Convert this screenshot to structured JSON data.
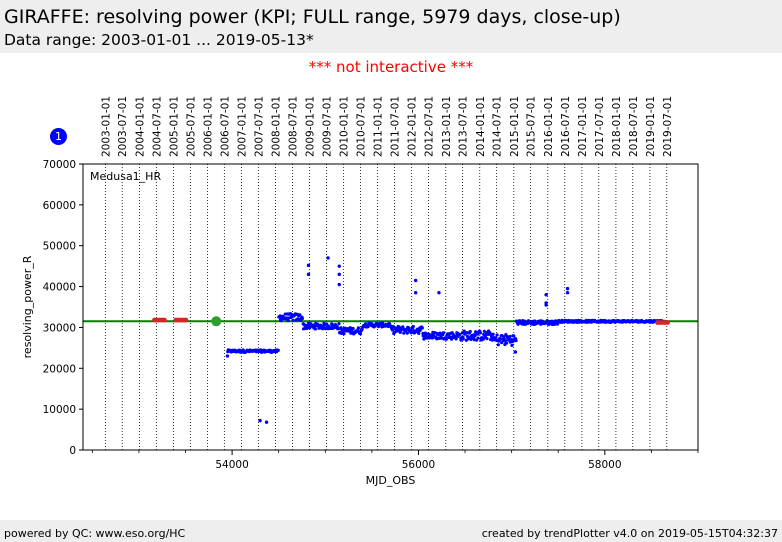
{
  "header": {
    "title": "GIRAFFE: resolving power (KPI; FULL range, 5979 days, close-up)",
    "subtitle": "Data range: 2003-01-01 ... 2019-05-13*"
  },
  "notice": "*** not interactive ***",
  "badge": "1",
  "footer": {
    "left": "powered by QC: www.eso.org/HC",
    "right": "created by trendPlotter v4.0 on 2019-05-15T04:32:37"
  },
  "colors": {
    "data_points": "#0000ff",
    "reference_line": "#008000",
    "marker_red": "#d62728",
    "marker_green": "#2ca02c"
  },
  "chart_data": {
    "type": "scatter",
    "title": "",
    "xlabel": "MJD_OBS",
    "ylabel": "resolving_power_R",
    "annotation": "Medusa1_HR",
    "xlim": [
      52400,
      59000
    ],
    "ylim": [
      0,
      70000
    ],
    "x_ticks": [
      54000,
      56000,
      58000
    ],
    "y_ticks": [
      0,
      10000,
      20000,
      30000,
      40000,
      50000,
      60000,
      70000
    ],
    "date_axis": {
      "labels": [
        "2003-01-01",
        "2003-07-01",
        "2004-01-01",
        "2004-07-01",
        "2005-01-01",
        "2005-07-01",
        "2006-01-01",
        "2006-07-01",
        "2007-01-01",
        "2007-07-01",
        "2008-01-01",
        "2008-07-01",
        "2009-01-01",
        "2009-07-01",
        "2010-01-01",
        "2010-07-01",
        "2011-01-01",
        "2011-07-01",
        "2012-01-01",
        "2012-07-01",
        "2013-01-01",
        "2013-07-01",
        "2014-01-01",
        "2014-07-01",
        "2015-01-01",
        "2015-07-01",
        "2016-01-01",
        "2016-07-01",
        "2017-01-01",
        "2017-07-01",
        "2018-01-01",
        "2018-07-01",
        "2019-01-01",
        "2019-07-01"
      ],
      "mjd": [
        52640,
        52821,
        53005,
        53187,
        53371,
        53552,
        53736,
        53917,
        54101,
        54282,
        54466,
        54648,
        54832,
        55013,
        55197,
        55378,
        55562,
        55743,
        55927,
        56109,
        56293,
        56474,
        56658,
        56839,
        57023,
        57204,
        57388,
        57570,
        57754,
        57935,
        58119,
        58300,
        58484,
        58665
      ]
    },
    "reference_line": {
      "y": 31500
    },
    "series": [
      {
        "segments": [
          {
            "x0": 53950,
            "x1": 54500,
            "base": 24200,
            "spread": 300
          },
          {
            "x0": 54500,
            "x1": 54760,
            "base": 32500,
            "spread": 900
          },
          {
            "x0": 54760,
            "x1": 55150,
            "base": 30300,
            "spread": 700
          },
          {
            "x0": 55150,
            "x1": 55400,
            "base": 29200,
            "spread": 800
          },
          {
            "x0": 55400,
            "x1": 55700,
            "base": 30600,
            "spread": 500
          },
          {
            "x0": 55700,
            "x1": 56050,
            "base": 29400,
            "spread": 900
          },
          {
            "x0": 56050,
            "x1": 56450,
            "base": 28000,
            "spread": 900
          },
          {
            "x0": 56450,
            "x1": 56800,
            "base": 28000,
            "spread": 1200
          },
          {
            "x0": 56800,
            "x1": 57050,
            "base": 27000,
            "spread": 1400
          },
          {
            "x0": 57050,
            "x1": 57500,
            "base": 31200,
            "spread": 500
          },
          {
            "x0": 57500,
            "x1": 58650,
            "base": 31500,
            "spread": 250
          }
        ],
        "outliers": [
          {
            "x": 54300,
            "y": 7200
          },
          {
            "x": 54370,
            "y": 6800
          },
          {
            "x": 54820,
            "y": 45200
          },
          {
            "x": 54820,
            "y": 43000
          },
          {
            "x": 55030,
            "y": 47000
          },
          {
            "x": 55150,
            "y": 45000
          },
          {
            "x": 55150,
            "y": 43000
          },
          {
            "x": 55150,
            "y": 40500
          },
          {
            "x": 55970,
            "y": 41500
          },
          {
            "x": 55970,
            "y": 38500
          },
          {
            "x": 56220,
            "y": 38500
          },
          {
            "x": 57370,
            "y": 38000
          },
          {
            "x": 57370,
            "y": 36000
          },
          {
            "x": 57370,
            "y": 35500
          },
          {
            "x": 57600,
            "y": 39500
          },
          {
            "x": 57600,
            "y": 38500
          },
          {
            "x": 57040,
            "y": 24000
          },
          {
            "x": 53950,
            "y": 23000
          }
        ]
      }
    ],
    "markers": [
      {
        "x": 53220,
        "y": 31800,
        "color": "red"
      },
      {
        "x": 53450,
        "y": 31800,
        "color": "red"
      },
      {
        "x": 53830,
        "y": 31500,
        "color": "green"
      },
      {
        "x": 58620,
        "y": 31200,
        "color": "red"
      }
    ]
  }
}
